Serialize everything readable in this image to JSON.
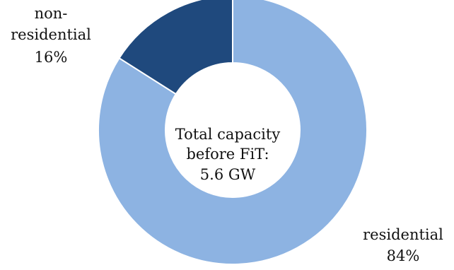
{
  "chart_data": {
    "type": "pie",
    "variant": "donut",
    "slices": [
      {
        "label_lines": [
          "residential",
          "84%"
        ],
        "label": "residential",
        "percent_text": "84%",
        "value": 84,
        "color": "#8db3e2"
      },
      {
        "label_lines": [
          "non-",
          "residential",
          "16%"
        ],
        "label": "non-residential",
        "percent_text": "16%",
        "value": 16,
        "color": "#1f497d"
      }
    ],
    "center_text": [
      "Total capacity",
      "before FiT:",
      "5.6 GW"
    ],
    "slice_border_color": "#ffffff"
  }
}
